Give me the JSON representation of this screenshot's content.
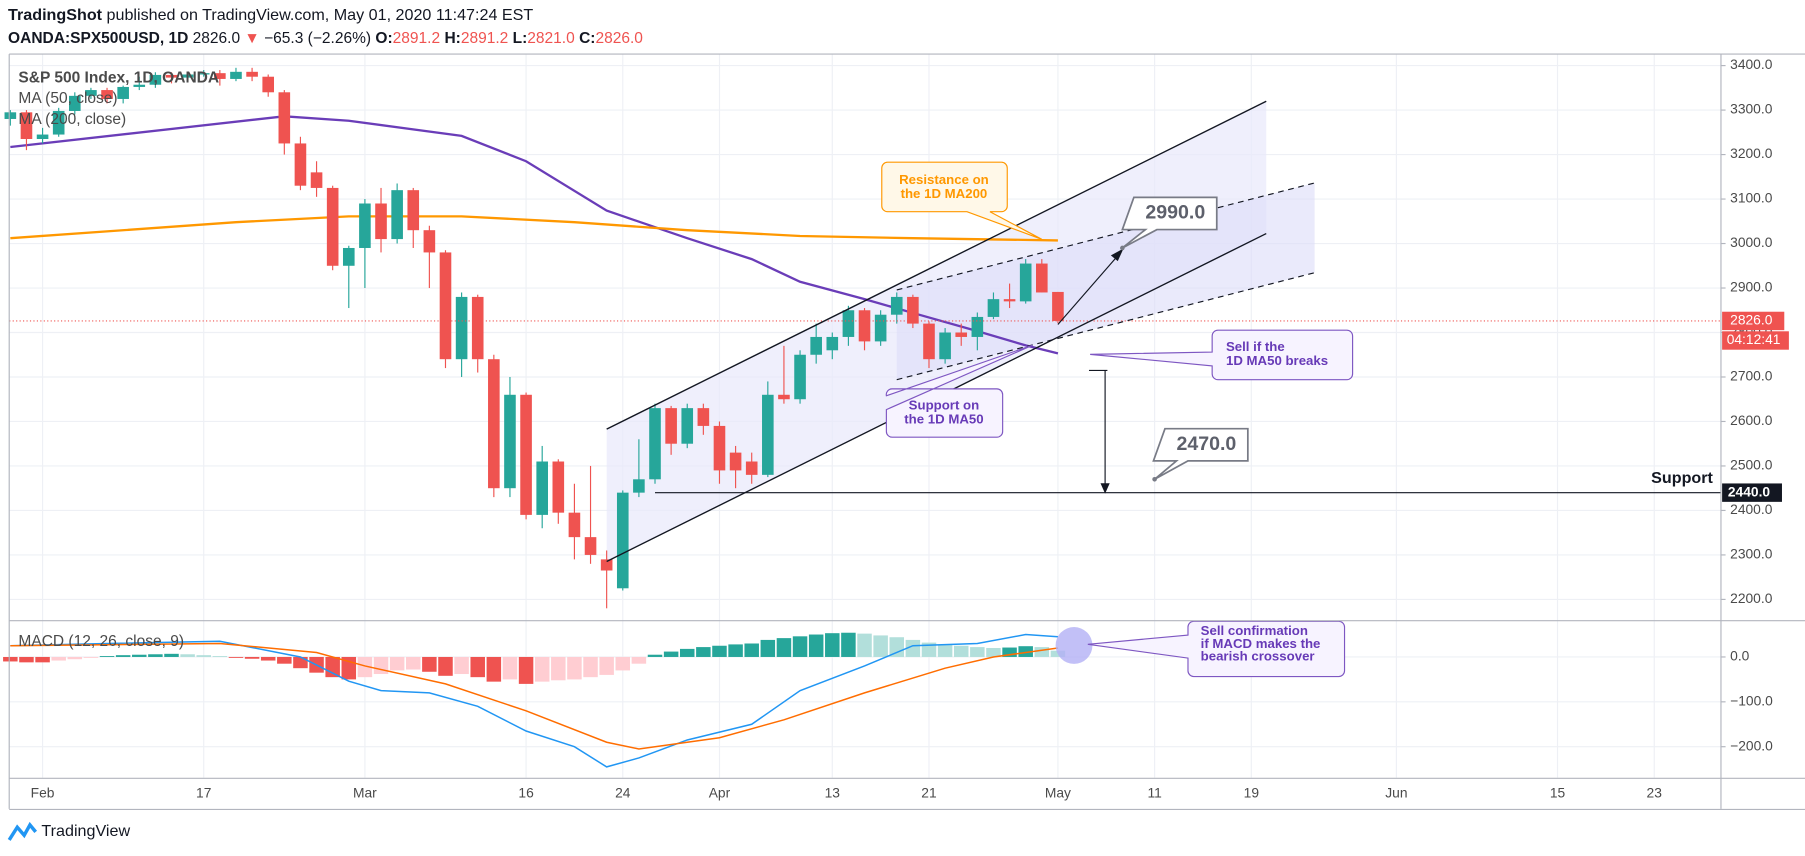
{
  "header": {
    "publisher": "TradingShot",
    "published": "published on TradingView.com, May 01, 2020 11:47:24 EST",
    "symbol": "OANDA:SPX500USD, 1D",
    "last": "2826.0",
    "arrow": "▼",
    "change": "−65.3 (−2.26%)",
    "o_key": "O:",
    "o": "2891.2",
    "h_key": "H:",
    "h": "2891.2",
    "l_key": "L:",
    "l": "2821.0",
    "c_key": "C:",
    "c": "2826.0"
  },
  "footer": {
    "brand": "TradingView"
  },
  "chart_data": [
    {
      "type": "candlestick",
      "title": "S&P 500 Index, 1D, OANDA",
      "up_color": "#26a69a",
      "down_color": "#ef5350",
      "open": [
        3280,
        3295,
        3235,
        3245,
        3298,
        3332,
        3345,
        3325,
        3352,
        3357,
        3379,
        3373,
        3380,
        3383,
        3370,
        3386,
        3375,
        3340,
        3225,
        3160,
        3125,
        2950,
        2990,
        3090,
        3010,
        3120,
        3030,
        2980,
        2740,
        2880,
        2740,
        2450,
        2660,
        2390,
        2510,
        2395,
        2340,
        2290,
        2225,
        2440,
        2470,
        2630,
        2550,
        2630,
        2590,
        2530,
        2510,
        2480,
        2660,
        2650,
        2750,
        2760,
        2790,
        2850,
        2780,
        2840,
        2880,
        2820,
        2740,
        2800,
        2790,
        2835,
        2875,
        2870,
        2955,
        2891.2
      ],
      "high": [
        3300,
        3300,
        3260,
        3305,
        3340,
        3350,
        3350,
        3355,
        3375,
        3385,
        3385,
        3385,
        3390,
        3390,
        3395,
        3395,
        3380,
        3345,
        3240,
        3185,
        3130,
        2995,
        3100,
        3125,
        3135,
        3125,
        3040,
        2985,
        2890,
        2885,
        2750,
        2700,
        2665,
        2545,
        2515,
        2460,
        2500,
        2310,
        2445,
        2560,
        2640,
        2635,
        2640,
        2640,
        2600,
        2545,
        2530,
        2690,
        2770,
        2760,
        2820,
        2800,
        2860,
        2855,
        2850,
        2890,
        2885,
        2825,
        2810,
        2820,
        2845,
        2890,
        2910,
        2965,
        2965,
        2891.2
      ],
      "low": [
        3265,
        3210,
        3225,
        3240,
        3290,
        3325,
        3315,
        3315,
        3345,
        3350,
        3360,
        3365,
        3375,
        3355,
        3365,
        3365,
        3330,
        3200,
        3120,
        3105,
        2940,
        2855,
        2900,
        2980,
        3000,
        2990,
        2900,
        2720,
        2700,
        2710,
        2430,
        2430,
        2380,
        2360,
        2370,
        2290,
        2280,
        2180,
        2220,
        2430,
        2460,
        2525,
        2540,
        2570,
        2460,
        2450,
        2460,
        2475,
        2640,
        2640,
        2730,
        2740,
        2770,
        2760,
        2770,
        2820,
        2810,
        2720,
        2730,
        2770,
        2760,
        2830,
        2855,
        2865,
        2890,
        2821
      ],
      "close": [
        3295,
        3235,
        3245,
        3298,
        3332,
        3345,
        3325,
        3352,
        3357,
        3379,
        3373,
        3380,
        3383,
        3370,
        3386,
        3375,
        3340,
        3225,
        3130,
        3125,
        2950,
        2990,
        3090,
        3010,
        3120,
        3030,
        2980,
        2740,
        2880,
        2740,
        2450,
        2660,
        2390,
        2510,
        2395,
        2340,
        2300,
        2265,
        2440,
        2470,
        2630,
        2550,
        2630,
        2590,
        2490,
        2490,
        2480,
        2660,
        2650,
        2750,
        2790,
        2790,
        2850,
        2780,
        2840,
        2880,
        2820,
        2740,
        2800,
        2790,
        2835,
        2875,
        2870,
        2955,
        2890,
        2826
      ],
      "series": [
        {
          "name": "MA (50, close)",
          "color": "#6a3db8",
          "x": [
            0,
            17,
            21,
            28,
            32,
            37,
            42,
            46,
            49,
            53,
            56,
            60,
            63,
            65
          ],
          "values": [
            3217,
            3286,
            3276,
            3242,
            3185,
            3074,
            3012,
            2965,
            2914,
            2875,
            2844,
            2803,
            2771,
            2753
          ]
        },
        {
          "name": "MA (200, close)",
          "color": "#ff9800",
          "x": [
            0,
            14,
            21,
            28,
            35,
            42,
            49,
            56,
            65
          ],
          "values": [
            3012,
            3048,
            3061,
            3061,
            3048,
            3030,
            3017,
            3012,
            3007
          ]
        }
      ],
      "xlim": [
        -0.07,
        106.14
      ],
      "xticks": [
        {
          "value": 2,
          "label": "Feb"
        },
        {
          "value": 12,
          "label": "17"
        },
        {
          "value": 22,
          "label": "Mar"
        },
        {
          "value": 32,
          "label": "16"
        },
        {
          "value": 38,
          "label": "24"
        },
        {
          "value": 44,
          "label": "Apr"
        },
        {
          "value": 51,
          "label": "13"
        },
        {
          "value": 57,
          "label": "21"
        },
        {
          "value": 65,
          "label": "May"
        },
        {
          "value": 71,
          "label": "11"
        },
        {
          "value": 77,
          "label": "19"
        },
        {
          "value": 86,
          "label": "Jun"
        },
        {
          "value": 96,
          "label": "15"
        },
        {
          "value": 102,
          "label": "23"
        }
      ],
      "ylim": [
        2153.4,
        3425.9
      ],
      "yticks": [
        {
          "value": 2200,
          "label": "2200.0"
        },
        {
          "value": 2300,
          "label": "2300.0"
        },
        {
          "value": 2400,
          "label": "2400.0"
        },
        {
          "value": 2500,
          "label": "2500.0"
        },
        {
          "value": 2600,
          "label": "2600.0"
        },
        {
          "value": 2700,
          "label": "2700.0"
        },
        {
          "value": 2800,
          "label": "2800.0"
        },
        {
          "value": 2900,
          "label": "2900.0"
        },
        {
          "value": 3000,
          "label": "3000.0"
        },
        {
          "value": 3100,
          "label": "3100.0"
        },
        {
          "value": 3200,
          "label": "3200.0"
        },
        {
          "value": 3300,
          "label": "3300.0"
        },
        {
          "value": 3400,
          "label": "3400.0"
        }
      ],
      "grid": true,
      "price_line": {
        "value": 2826,
        "label": "2826.0",
        "color": "#ef5350"
      },
      "countdown": "04:12:41",
      "support": {
        "text": "Support",
        "value": 2440,
        "label": "2440.0"
      },
      "targets": [
        {
          "value": 2990,
          "label": "2990.0"
        },
        {
          "value": 2470,
          "label": "2470.0"
        }
      ],
      "annotations": {
        "resistance": [
          "Resistance on",
          "the 1D MA200"
        ],
        "support_ma": [
          "Support on",
          "the 1D MA50"
        ],
        "sell": [
          "Sell if the",
          "1D MA50 breaks"
        ],
        "confirm": [
          "Sell confirmation",
          "if MACD makes the",
          "bearish crossover"
        ]
      }
    },
    {
      "type": "bar",
      "title": "MACD (12, 26, close, 9)",
      "values": [
        -10,
        -12,
        -12,
        -8,
        -5,
        -2,
        2,
        4,
        5,
        6,
        7,
        6,
        4,
        2,
        -2,
        -4,
        -8,
        -15,
        -25,
        -35,
        -45,
        -50,
        -45,
        -38,
        -30,
        -28,
        -33,
        -42,
        -38,
        -45,
        -55,
        -50,
        -60,
        -55,
        -52,
        -50,
        -45,
        -40,
        -30,
        -15,
        5,
        12,
        18,
        22,
        25,
        28,
        30,
        38,
        42,
        46,
        50,
        53,
        54,
        52,
        48,
        44,
        38,
        32,
        28,
        25,
        22,
        20,
        21,
        24,
        22,
        14
      ],
      "colors": {
        "up_rising": "#26a69a",
        "up_falling": "#b2dfdb",
        "down_falling": "#ef5350",
        "down_rising": "#ffcdd2"
      },
      "series": [
        {
          "color": "#2196f3",
          "x": [
            0,
            6,
            13,
            18,
            21,
            23,
            26,
            29,
            32,
            35,
            37,
            39,
            42,
            46,
            49,
            53,
            56,
            60,
            63,
            65
          ],
          "values": [
            25,
            30,
            35,
            0,
            -54,
            -75,
            -80,
            -110,
            -165,
            -200,
            -245,
            -225,
            -185,
            -150,
            -75,
            -20,
            25,
            30,
            50,
            45
          ]
        },
        {
          "color": "#ff6d00",
          "x": [
            0,
            13,
            19,
            22,
            27,
            32,
            37,
            39,
            44,
            48,
            53,
            58,
            61,
            65
          ],
          "values": [
            25,
            30,
            10,
            -20,
            -60,
            -120,
            -190,
            -205,
            -180,
            -140,
            -80,
            -25,
            0,
            20
          ]
        }
      ],
      "ylim": [
        -269.2,
        79.5
      ],
      "yticks": [
        {
          "value": 0,
          "label": "0.0"
        },
        {
          "value": -100,
          "label": "−100.0"
        },
        {
          "value": -200,
          "label": "−200.0"
        }
      ]
    }
  ]
}
